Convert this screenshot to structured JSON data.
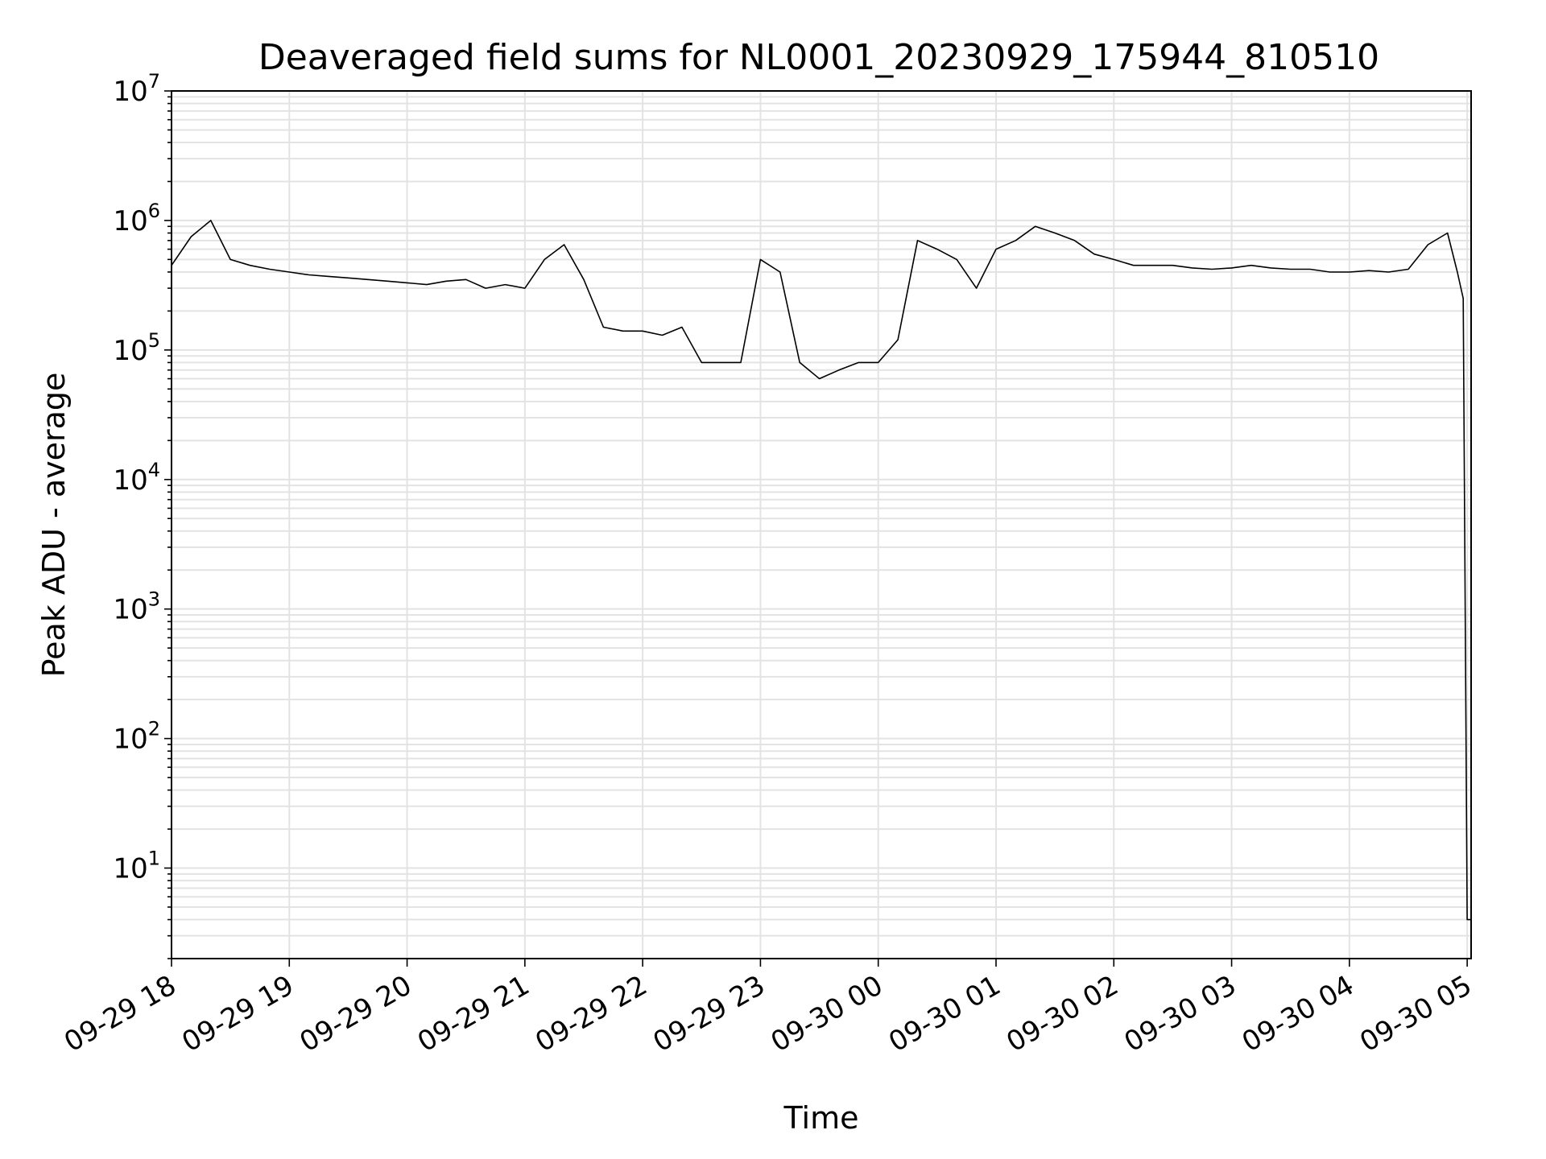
{
  "chart_data": {
    "type": "line",
    "title": "Deaveraged field sums for NL0001_20230929_175944_810510",
    "xlabel": "Time",
    "ylabel": "Peak ADU - average",
    "y_scale": "log",
    "ylim": [
      2,
      10000000
    ],
    "xlim": [
      "09-29 18:00",
      "09-30 05:02"
    ],
    "grid": true,
    "line_color": "#000000",
    "grid_color": "#e3e3e3",
    "x_ticks": [
      {
        "label": "09-29 18",
        "time": "09-29 18:00"
      },
      {
        "label": "09-29 19",
        "time": "09-29 19:00"
      },
      {
        "label": "09-29 20",
        "time": "09-29 20:00"
      },
      {
        "label": "09-29 21",
        "time": "09-29 21:00"
      },
      {
        "label": "09-29 22",
        "time": "09-29 22:00"
      },
      {
        "label": "09-29 23",
        "time": "09-29 23:00"
      },
      {
        "label": "09-30 00",
        "time": "09-30 00:00"
      },
      {
        "label": "09-30 01",
        "time": "09-30 01:00"
      },
      {
        "label": "09-30 02",
        "time": "09-30 02:00"
      },
      {
        "label": "09-30 03",
        "time": "09-30 03:00"
      },
      {
        "label": "09-30 04",
        "time": "09-30 04:00"
      },
      {
        "label": "09-30 05",
        "time": "09-30 05:00"
      }
    ],
    "y_ticks": [
      {
        "base": "10",
        "exp": "1",
        "value": 10
      },
      {
        "base": "10",
        "exp": "2",
        "value": 100
      },
      {
        "base": "10",
        "exp": "3",
        "value": 1000
      },
      {
        "base": "10",
        "exp": "4",
        "value": 10000
      },
      {
        "base": "10",
        "exp": "5",
        "value": 100000
      },
      {
        "base": "10",
        "exp": "6",
        "value": 1000000
      },
      {
        "base": "10",
        "exp": "7",
        "value": 10000000
      }
    ],
    "series": [
      {
        "x": [
          "09-29 18:00",
          "09-29 18:10",
          "09-29 18:20",
          "09-29 18:30",
          "09-29 18:40",
          "09-29 18:50",
          "09-29 19:00",
          "09-29 19:10",
          "09-29 19:20",
          "09-29 19:30",
          "09-29 19:40",
          "09-29 19:50",
          "09-29 20:00",
          "09-29 20:10",
          "09-29 20:20",
          "09-29 20:30",
          "09-29 20:40",
          "09-29 20:50",
          "09-29 21:00",
          "09-29 21:10",
          "09-29 21:20",
          "09-29 21:30",
          "09-29 21:40",
          "09-29 21:50",
          "09-29 22:00",
          "09-29 22:10",
          "09-29 22:20",
          "09-29 22:30",
          "09-29 22:40",
          "09-29 22:50",
          "09-29 23:00",
          "09-29 23:10",
          "09-29 23:20",
          "09-29 23:30",
          "09-29 23:40",
          "09-29 23:50",
          "09-30 00:00",
          "09-30 00:10",
          "09-30 00:20",
          "09-30 00:30",
          "09-30 00:40",
          "09-30 00:50",
          "09-30 01:00",
          "09-30 01:10",
          "09-30 01:20",
          "09-30 01:30",
          "09-30 01:40",
          "09-30 01:50",
          "09-30 02:00",
          "09-30 02:10",
          "09-30 02:20",
          "09-30 02:30",
          "09-30 02:40",
          "09-30 02:50",
          "09-30 03:00",
          "09-30 03:10",
          "09-30 03:20",
          "09-30 03:30",
          "09-30 03:40",
          "09-30 03:50",
          "09-30 04:00",
          "09-30 04:10",
          "09-30 04:20",
          "09-30 04:30",
          "09-30 04:40",
          "09-30 04:50",
          "09-30 04:55",
          "09-30 04:58",
          "09-30 05:00",
          "09-30 05:02"
        ],
        "y": [
          450000,
          750000,
          1000000,
          500000,
          450000,
          420000,
          400000,
          380000,
          370000,
          360000,
          350000,
          340000,
          330000,
          320000,
          340000,
          350000,
          300000,
          320000,
          300000,
          500000,
          650000,
          350000,
          150000,
          140000,
          140000,
          130000,
          150000,
          80000,
          80000,
          80000,
          500000,
          400000,
          80000,
          60000,
          70000,
          80000,
          80000,
          120000,
          700000,
          600000,
          500000,
          300000,
          600000,
          700000,
          900000,
          800000,
          700000,
          550000,
          500000,
          450000,
          450000,
          450000,
          430000,
          420000,
          430000,
          450000,
          430000,
          420000,
          420000,
          400000,
          400000,
          410000,
          400000,
          420000,
          650000,
          800000,
          400000,
          250000,
          4,
          4
        ]
      }
    ]
  }
}
